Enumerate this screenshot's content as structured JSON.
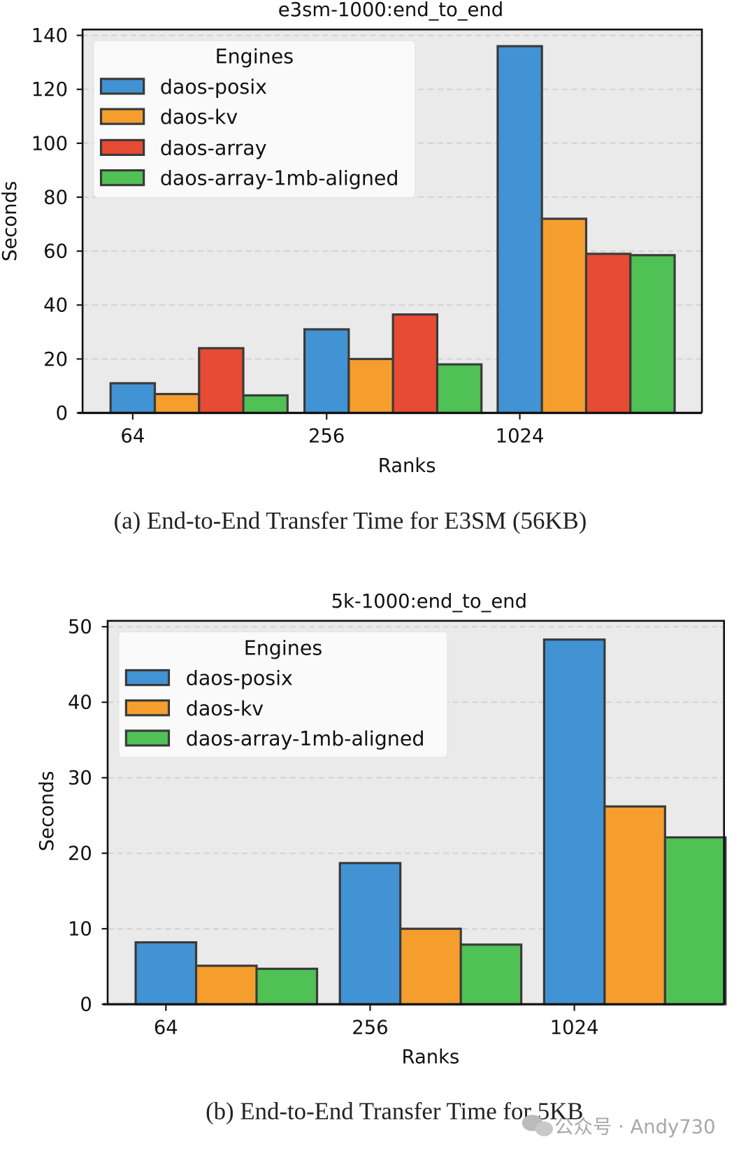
{
  "colors": {
    "daos-posix": "#4193d3",
    "daos-kv": "#f59e2e",
    "daos-array": "#e74b33",
    "daos-array-1mb-aligned": "#4fc155",
    "plot_bg": "#eaeaea",
    "edge": "#3a3a3a"
  },
  "chart_data": [
    {
      "type": "bar",
      "title": "e3sm-1000:end_to_end",
      "xlabel": "Ranks",
      "ylabel": "Seconds",
      "ylim": [
        0,
        140
      ],
      "yticks": [
        "0",
        "20",
        "40",
        "60",
        "80",
        "100",
        "120",
        "140"
      ],
      "grid": true,
      "legend_title": "Engines",
      "legend_placement": "top-left",
      "categories": [
        "64",
        "256",
        "1024"
      ],
      "series": [
        {
          "name": "daos-posix",
          "values": [
            11,
            31,
            136
          ]
        },
        {
          "name": "daos-kv",
          "values": [
            7,
            20,
            72
          ]
        },
        {
          "name": "daos-array",
          "values": [
            24,
            36.5,
            59
          ]
        },
        {
          "name": "daos-array-1mb-aligned",
          "values": [
            6.5,
            18,
            58.5
          ]
        }
      ],
      "caption": "(a) End-to-End Transfer Time for E3SM (56KB)"
    },
    {
      "type": "bar",
      "title": "5k-1000:end_to_end",
      "xlabel": "Ranks",
      "ylabel": "Seconds",
      "ylim": [
        0,
        50
      ],
      "yticks": [
        "0",
        "10",
        "20",
        "30",
        "40",
        "50"
      ],
      "grid": true,
      "legend_title": "Engines",
      "legend_placement": "top-left",
      "categories": [
        "64",
        "256",
        "1024"
      ],
      "series": [
        {
          "name": "daos-posix",
          "values": [
            8.2,
            18.7,
            48.3
          ]
        },
        {
          "name": "daos-kv",
          "values": [
            5.1,
            10,
            26.2
          ]
        },
        {
          "name": "daos-array-1mb-aligned",
          "values": [
            4.7,
            7.9,
            22.1
          ]
        }
      ],
      "caption": "(b) End-to-End Transfer Time for 5KB"
    }
  ],
  "watermark": "公众号 · Andy730"
}
